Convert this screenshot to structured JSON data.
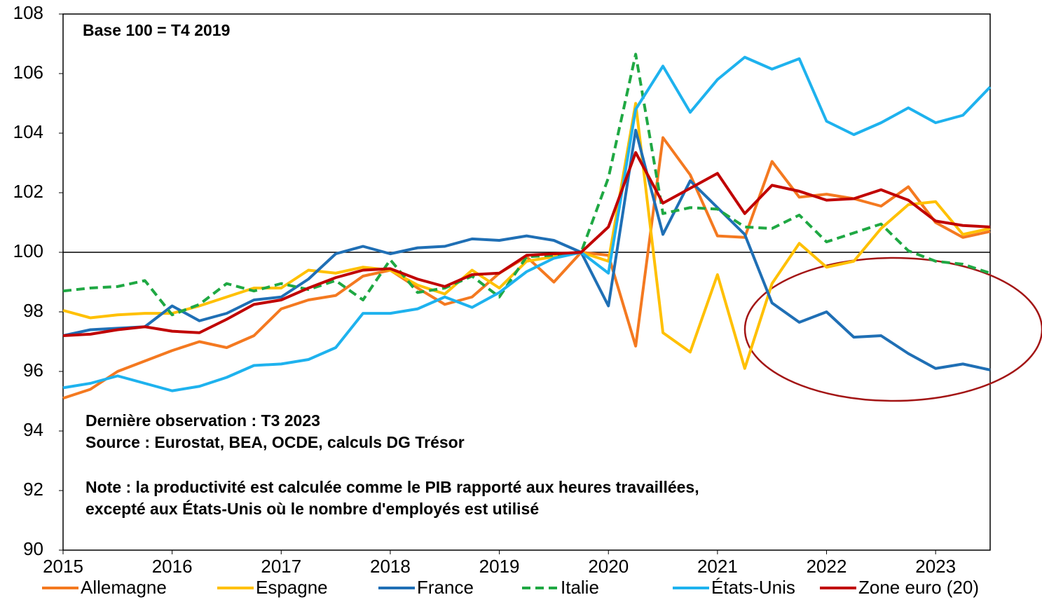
{
  "chart_data": {
    "type": "line",
    "annotations": [
      "Base 100 = T4 2019",
      "Dernière observation : T3 2023",
      "Source : Eurostat, BEA, OCDE, calculs DG Trésor",
      "Note : la productivité est calculée comme le PIB rapporté aux heures travaillées,",
      "excepté aux États-Unis où le nombre d'employés est utilisé"
    ],
    "x": [
      2015,
      2015.25,
      2015.5,
      2015.75,
      2016,
      2016.25,
      2016.5,
      2016.75,
      2017,
      2017.25,
      2017.5,
      2017.75,
      2018,
      2018.25,
      2018.5,
      2018.75,
      2019,
      2019.25,
      2019.5,
      2019.75,
      2020,
      2020.25,
      2020.5,
      2020.75,
      2021,
      2021.25,
      2021.5,
      2021.75,
      2022,
      2022.25,
      2022.5,
      2022.75,
      2023,
      2023.25,
      2023.5
    ],
    "xlim": [
      2015,
      2023.5
    ],
    "xticks": [
      2015,
      2016,
      2017,
      2018,
      2019,
      2020,
      2021,
      2022,
      2023
    ],
    "ylim": [
      90,
      108
    ],
    "yticks": [
      90,
      92,
      94,
      96,
      98,
      100,
      102,
      104,
      106,
      108
    ],
    "reference_line": 100,
    "legend": "bottom",
    "series": [
      {
        "name": "Allemagne",
        "color": "#f47920",
        "style": "solid",
        "values": [
          95.1,
          95.4,
          96.0,
          96.35,
          96.7,
          97.0,
          96.8,
          97.2,
          98.1,
          98.4,
          98.55,
          99.2,
          99.4,
          98.8,
          98.25,
          98.5,
          99.3,
          99.85,
          99.0,
          100.0,
          99.9,
          96.85,
          103.85,
          102.6,
          100.55,
          100.5,
          103.05,
          101.85,
          101.95,
          101.8,
          101.55,
          102.2,
          101.0,
          100.5,
          100.7
        ]
      },
      {
        "name": "Espagne",
        "color": "#ffc000",
        "style": "solid",
        "values": [
          98.05,
          97.8,
          97.9,
          97.95,
          97.95,
          98.2,
          98.5,
          98.8,
          98.8,
          99.4,
          99.3,
          99.5,
          99.4,
          98.9,
          98.6,
          99.4,
          98.8,
          99.7,
          99.85,
          100.0,
          99.7,
          105.0,
          97.3,
          96.65,
          99.25,
          96.1,
          98.95,
          100.3,
          99.5,
          99.7,
          100.8,
          101.6,
          101.7,
          100.6,
          100.8
        ]
      },
      {
        "name": "France",
        "color": "#1f6fb5",
        "style": "solid",
        "values": [
          97.2,
          97.4,
          97.45,
          97.5,
          98.2,
          97.7,
          97.95,
          98.4,
          98.5,
          99.1,
          99.95,
          100.2,
          99.95,
          100.15,
          100.2,
          100.45,
          100.4,
          100.55,
          100.4,
          100.0,
          98.2,
          104.1,
          100.6,
          102.4,
          101.5,
          100.6,
          98.3,
          97.65,
          98.0,
          97.15,
          97.2,
          96.6,
          96.1,
          96.25,
          96.05
        ]
      },
      {
        "name": "Italie",
        "color": "#1fa843",
        "style": "dashed",
        "values": [
          98.7,
          98.8,
          98.85,
          99.05,
          97.9,
          98.25,
          98.95,
          98.7,
          98.95,
          98.75,
          99.05,
          98.4,
          99.75,
          98.65,
          98.8,
          99.2,
          98.5,
          99.85,
          99.9,
          100.0,
          102.5,
          106.65,
          101.3,
          101.5,
          101.45,
          100.85,
          100.8,
          101.25,
          100.35,
          100.65,
          100.95,
          100.05,
          99.7,
          99.6,
          99.3
        ]
      },
      {
        "name": "États-Unis",
        "color": "#1eb2ee",
        "style": "solid",
        "values": [
          95.45,
          95.6,
          95.85,
          95.6,
          95.35,
          95.5,
          95.8,
          96.2,
          96.25,
          96.4,
          96.8,
          97.95,
          97.95,
          98.1,
          98.5,
          98.15,
          98.65,
          99.35,
          99.8,
          100.0,
          99.3,
          104.8,
          106.25,
          104.7,
          105.8,
          106.55,
          106.15,
          106.5,
          104.4,
          103.95,
          104.35,
          104.85,
          104.35,
          104.6,
          105.55
        ]
      },
      {
        "name": "Zone euro (20)",
        "color": "#c00000",
        "style": "solid",
        "values": [
          97.2,
          97.25,
          97.4,
          97.5,
          97.35,
          97.3,
          97.75,
          98.25,
          98.4,
          98.8,
          99.15,
          99.4,
          99.45,
          99.1,
          98.85,
          99.25,
          99.3,
          99.9,
          99.95,
          100.0,
          100.85,
          103.35,
          101.65,
          102.15,
          102.65,
          101.3,
          102.25,
          102.05,
          101.75,
          101.8,
          102.1,
          101.75,
          101.05,
          100.9,
          100.85
        ]
      }
    ]
  }
}
